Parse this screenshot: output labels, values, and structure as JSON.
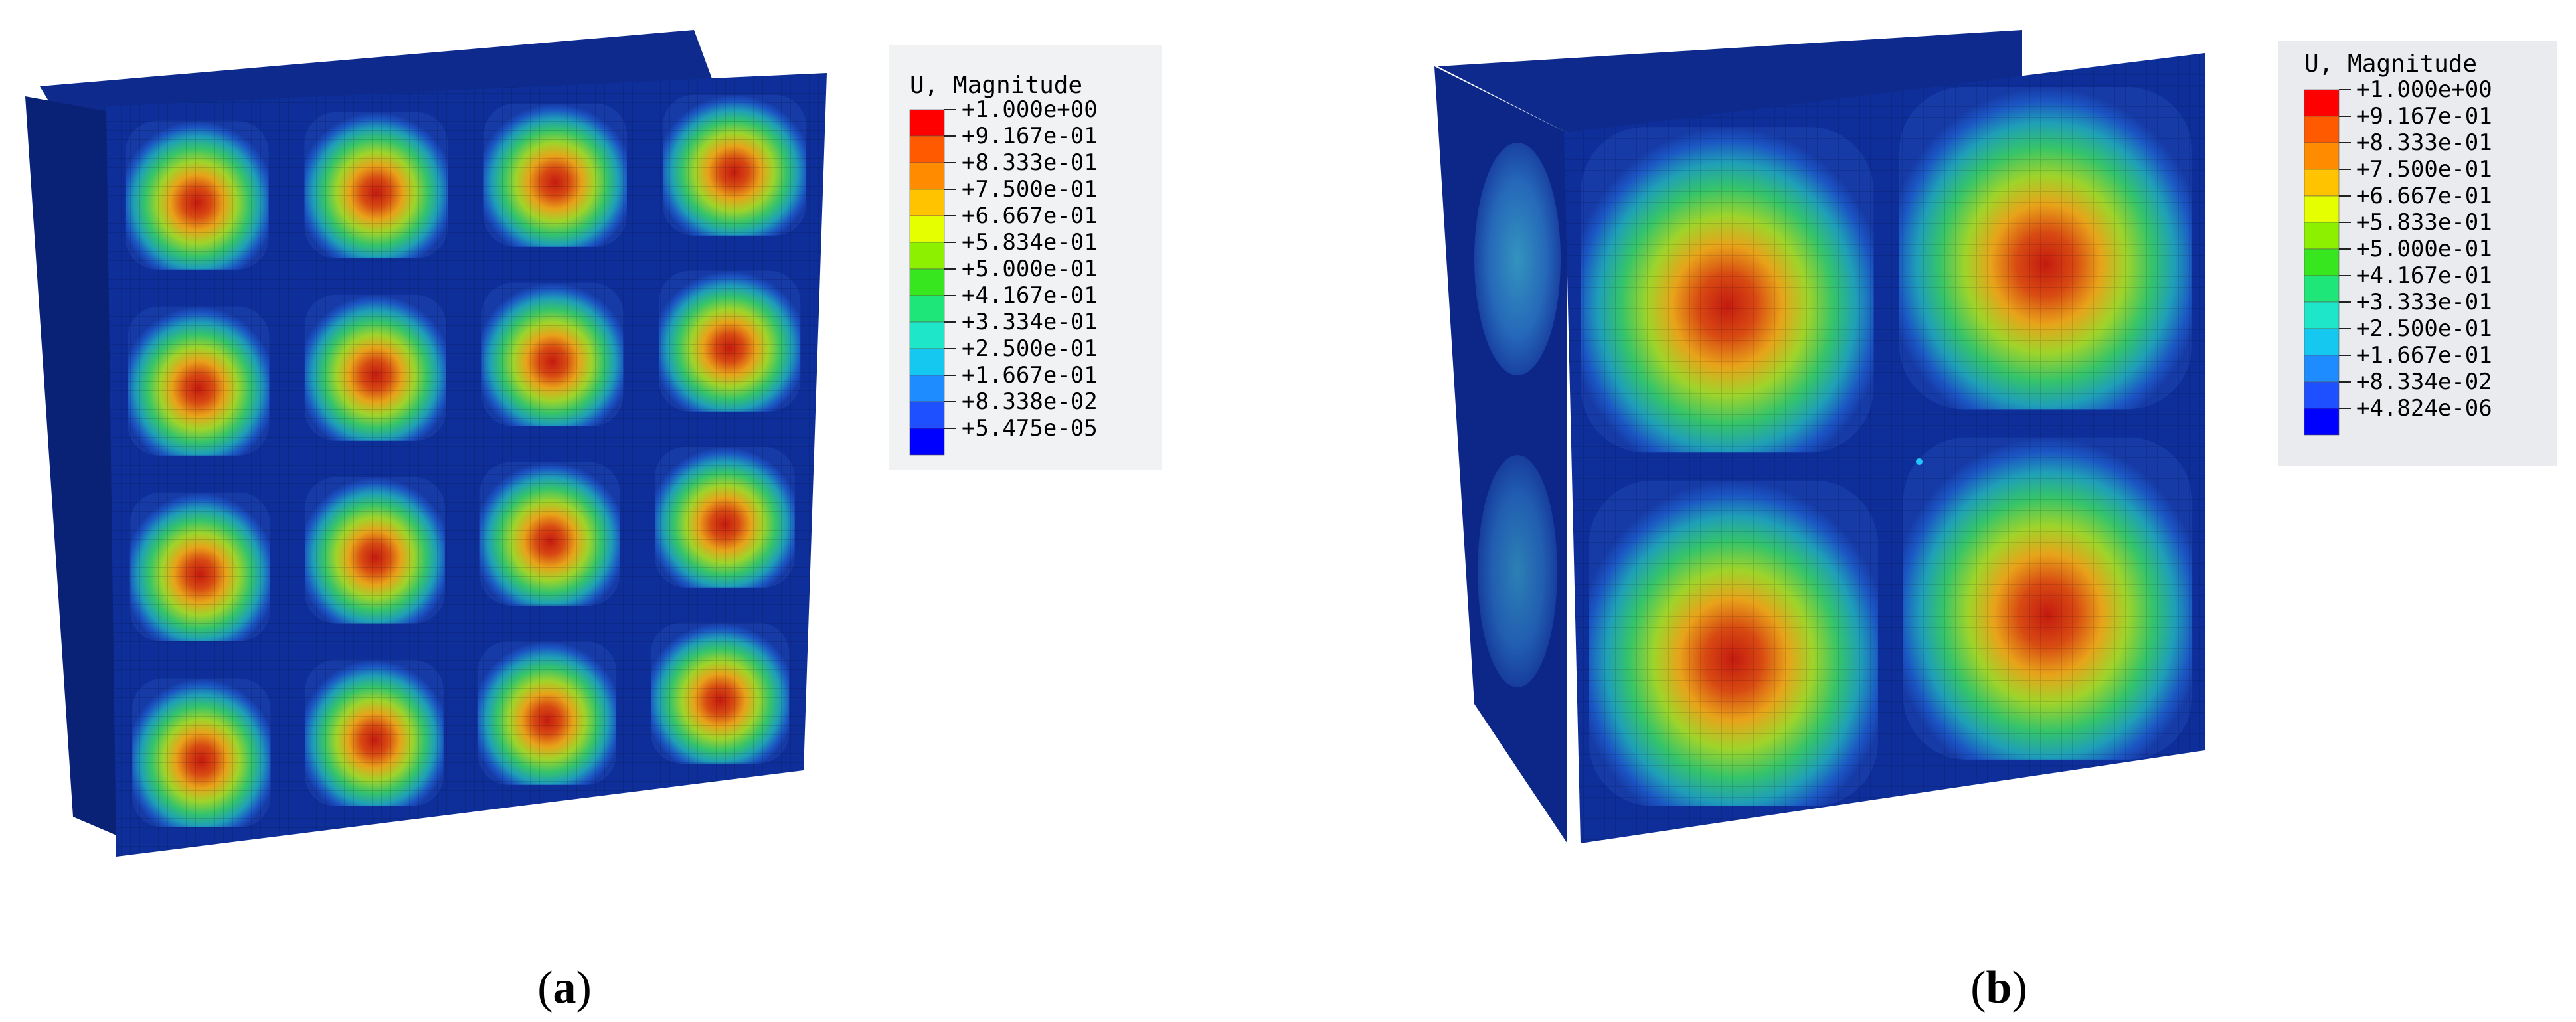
{
  "figure": {
    "panels": [
      {
        "id": "a",
        "caption_open": "(",
        "caption_label": "a",
        "caption_close": ")",
        "legend": {
          "title": "U, Magnitude",
          "values": [
            "+1.000e+00",
            "+9.167e-01",
            "+8.333e-01",
            "+7.500e-01",
            "+6.667e-01",
            "+5.834e-01",
            "+5.000e-01",
            "+4.167e-01",
            "+3.334e-01",
            "+2.500e-01",
            "+1.667e-01",
            "+8.338e-02",
            "+5.475e-05"
          ]
        },
        "buckling_mode": {
          "cell_rows": 4,
          "cell_cols": 4
        }
      },
      {
        "id": "b",
        "caption_open": "(",
        "caption_label": "b",
        "caption_close": ")",
        "legend": {
          "title": "U, Magnitude",
          "values": [
            "+1.000e+00",
            "+9.167e-01",
            "+8.333e-01",
            "+7.500e-01",
            "+6.667e-01",
            "+5.833e-01",
            "+5.000e-01",
            "+4.167e-01",
            "+3.333e-01",
            "+2.500e-01",
            "+1.667e-01",
            "+8.334e-02",
            "+4.824e-06"
          ]
        },
        "buckling_mode": {
          "cell_rows": 2,
          "cell_cols": 2
        }
      }
    ],
    "colormap": [
      "#ff0000",
      "#ff5a00",
      "#ff8c00",
      "#ffc300",
      "#e6ff00",
      "#8cf000",
      "#37e61e",
      "#1ee678",
      "#1ee6c8",
      "#14c8f0",
      "#1e8cff",
      "#1e50ff",
      "#0000ff"
    ],
    "colors": {
      "structure_base": "#0e2f9a",
      "background": "#ffffff"
    }
  }
}
